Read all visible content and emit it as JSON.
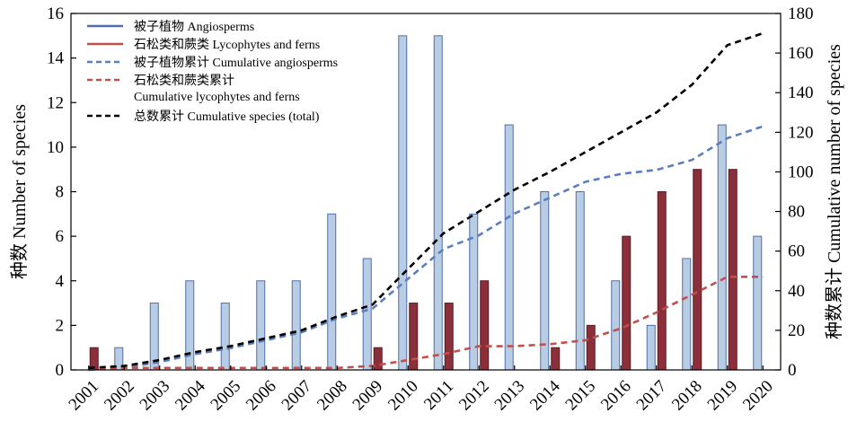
{
  "chart_data": {
    "type": "bar",
    "x": [
      "2001",
      "2002",
      "2003",
      "2004",
      "2005",
      "2006",
      "2007",
      "2008",
      "2009",
      "2010",
      "2011",
      "2012",
      "2013",
      "2014",
      "2015",
      "2016",
      "2017",
      "2018",
      "2019",
      "2020"
    ],
    "series": [
      {
        "name": "被子植物 Angiosperms",
        "kind": "bar",
        "axis": "left",
        "color": "#b8cce4",
        "stroke": "#4f6fa8",
        "values": [
          0,
          1,
          3,
          4,
          3,
          4,
          4,
          7,
          5,
          15,
          15,
          7,
          11,
          8,
          8,
          4,
          2,
          5,
          11,
          6
        ]
      },
      {
        "name": "石松类和蕨类 Lycophytes and ferns",
        "kind": "bar",
        "axis": "left",
        "color": "#8b2f3a",
        "stroke": "#5a1c24",
        "values": [
          1,
          0,
          0,
          0,
          0,
          0,
          0,
          0,
          1,
          3,
          3,
          4,
          0,
          1,
          2,
          6,
          8,
          9,
          9,
          0
        ]
      },
      {
        "name": "被子植物累计 Cumulative angiosperms",
        "kind": "line",
        "axis": "right",
        "color": "#5b7fbd",
        "dash": "7,5",
        "values": [
          0,
          1,
          4,
          8,
          11,
          15,
          19,
          26,
          31,
          46,
          61,
          68,
          79,
          87,
          95,
          99,
          101,
          106,
          117,
          123
        ]
      },
      {
        "name_lines": [
          "石松类和蕨类累计",
          "Cumulative lycophytes and ferns"
        ],
        "kind": "line",
        "axis": "right",
        "color": "#c0504d",
        "dash": "7,5",
        "values": [
          1,
          1,
          1,
          1,
          1,
          1,
          1,
          1,
          2,
          5,
          8,
          12,
          12,
          13,
          15,
          21,
          29,
          38,
          47,
          47
        ]
      },
      {
        "name": "总数累计 Cumulative species (total)",
        "kind": "line",
        "axis": "right",
        "color": "#000000",
        "dash": "7,5",
        "values": [
          1,
          2,
          5,
          9,
          12,
          16,
          20,
          27,
          33,
          51,
          69,
          80,
          91,
          100,
          110,
          120,
          130,
          144,
          164,
          170
        ]
      }
    ],
    "ylabel": "种数 Number of species",
    "y2label": "种数累计 Cumulative number of species",
    "ylim": [
      0,
      16
    ],
    "yticks": [
      "0",
      "2",
      "4",
      "6",
      "8",
      "10",
      "12",
      "14",
      "16"
    ],
    "y2lim": [
      0,
      180
    ],
    "y2ticks": [
      "0",
      "20",
      "40",
      "60",
      "80",
      "100",
      "120",
      "140",
      "160",
      "180"
    ],
    "grid": false,
    "legend": "top-left"
  }
}
